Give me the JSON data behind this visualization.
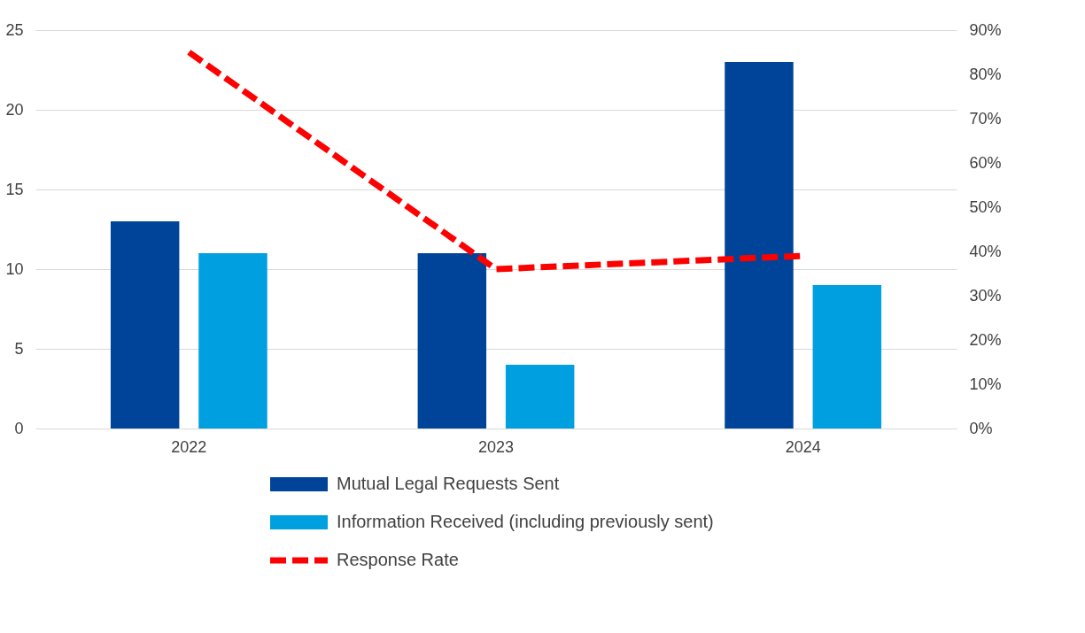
{
  "chart_data": {
    "type": "bar",
    "categories": [
      "2022",
      "2023",
      "2024"
    ],
    "series": [
      {
        "name": "Mutual Legal Requests Sent",
        "color": "#00449a",
        "values": [
          13,
          11,
          23
        ]
      },
      {
        "name": "Information Received (including previously sent)",
        "color": "#009fdf",
        "values": [
          11,
          4,
          9
        ]
      },
      {
        "name": "Response Rate",
        "color": "#ff0000",
        "type": "line",
        "axis": "y2",
        "line_style": "dashed",
        "values": [
          85,
          36,
          39
        ]
      }
    ],
    "ylim": [
      0,
      25
    ],
    "yticks": [
      0,
      5,
      10,
      15,
      20,
      25
    ],
    "y2lim": [
      0,
      90
    ],
    "y2ticks": [
      {
        "value": 0,
        "label": "0%"
      },
      {
        "value": 10,
        "label": "10%"
      },
      {
        "value": 20,
        "label": "20%"
      },
      {
        "value": 30,
        "label": "30%"
      },
      {
        "value": 40,
        "label": "40%"
      },
      {
        "value": 50,
        "label": "50%"
      },
      {
        "value": 60,
        "label": "60%"
      },
      {
        "value": 70,
        "label": "70%"
      },
      {
        "value": 80,
        "label": "80%"
      },
      {
        "value": 90,
        "label": "90%"
      }
    ],
    "grid": "y",
    "legend": "bottom"
  }
}
